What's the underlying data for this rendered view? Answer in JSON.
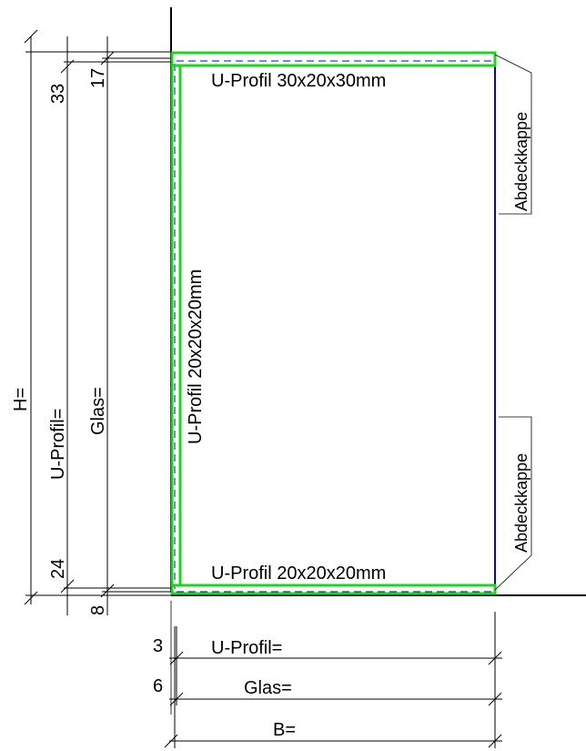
{
  "labels": {
    "profile_top": "U-Profil 30x20x30mm",
    "profile_side": "U-Profil 20x20x20mm",
    "profile_bottom": "U-Profil 20x20x20mm",
    "cap_top": "Abdeckkappe",
    "cap_bottom": "Abdeckkappe",
    "height_total": "H=",
    "height_profile": "U-Profil=",
    "height_glass": "Glas=",
    "width_profile": "U-Profil=",
    "width_glass": "Glas=",
    "width_total": "B="
  },
  "dimensions": {
    "top_profile": "33",
    "top_glass": "17",
    "bottom_profile": "24",
    "bottom_glass": "8",
    "left_profile": "3",
    "left_glass": "6"
  },
  "colors": {
    "profile": "#1ed41e",
    "glass": "#0000ee",
    "lines": "#000000"
  }
}
